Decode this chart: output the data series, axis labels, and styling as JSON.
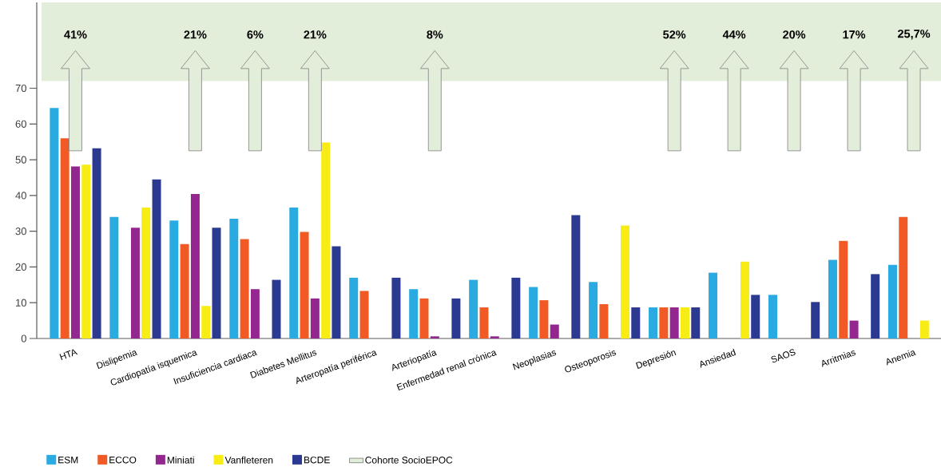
{
  "chart_data": {
    "type": "bar",
    "categories": [
      "HTA",
      "Dislipemia",
      "Cardiopatía isquemica",
      "Insuficiencia cardiaca",
      "Diabetes Mellitus",
      "Arteropatía periférica",
      "Arteriopatía",
      "Enfermedad renal crónica",
      "Neoplasias",
      "Osteoporosis",
      "Depresión",
      "Ansiedad",
      "SAOS",
      "Arritmias",
      "Anemia"
    ],
    "series": [
      {
        "name": "ESM",
        "color": "#29abe2",
        "values": [
          64.5,
          34,
          33,
          33.5,
          36.6,
          17,
          13.8,
          16.4,
          14.4,
          15.8,
          8.7,
          18.4,
          12.2,
          22,
          20.6
        ]
      },
      {
        "name": "ECCO",
        "color": "#f15a24",
        "values": [
          56,
          null,
          26.4,
          27.8,
          29.8,
          13.3,
          11.2,
          8.7,
          10.7,
          9.6,
          8.7,
          null,
          null,
          27.3,
          34
        ]
      },
      {
        "name": "Miniati",
        "color": "#93278f",
        "values": [
          48.1,
          31,
          40.4,
          13.8,
          11.2,
          null,
          0.6,
          0.6,
          3.9,
          null,
          8.7,
          null,
          null,
          5,
          null
        ]
      },
      {
        "name": "Vanfleteren",
        "color": "#f7ec13",
        "values": [
          48.6,
          36.6,
          9.1,
          null,
          54.8,
          null,
          null,
          null,
          null,
          31.6,
          8.7,
          21.5,
          null,
          null,
          5
        ]
      },
      {
        "name": "BCDE",
        "color": "#2b3990",
        "values": [
          53.2,
          44.5,
          31,
          16.4,
          25.8,
          17,
          11.2,
          17,
          34.5,
          8.7,
          8.7,
          12.2,
          10.2,
          18,
          null
        ]
      }
    ],
    "ylim": [
      0,
      94
    ],
    "yticks": [
      0,
      10,
      20,
      30,
      40,
      50,
      60,
      70
    ],
    "bands": [
      {
        "axis": "y",
        "from": 72,
        "to": 94,
        "label": "Cohorte SocioEPOC",
        "color": "#e2eed9"
      }
    ],
    "annotations": [
      "41%",
      "21%",
      "6%",
      "21%",
      "8%",
      "52%",
      "44%",
      "20%",
      "17%",
      "25,7%"
    ],
    "legend": "bottom",
    "grid": false
  }
}
